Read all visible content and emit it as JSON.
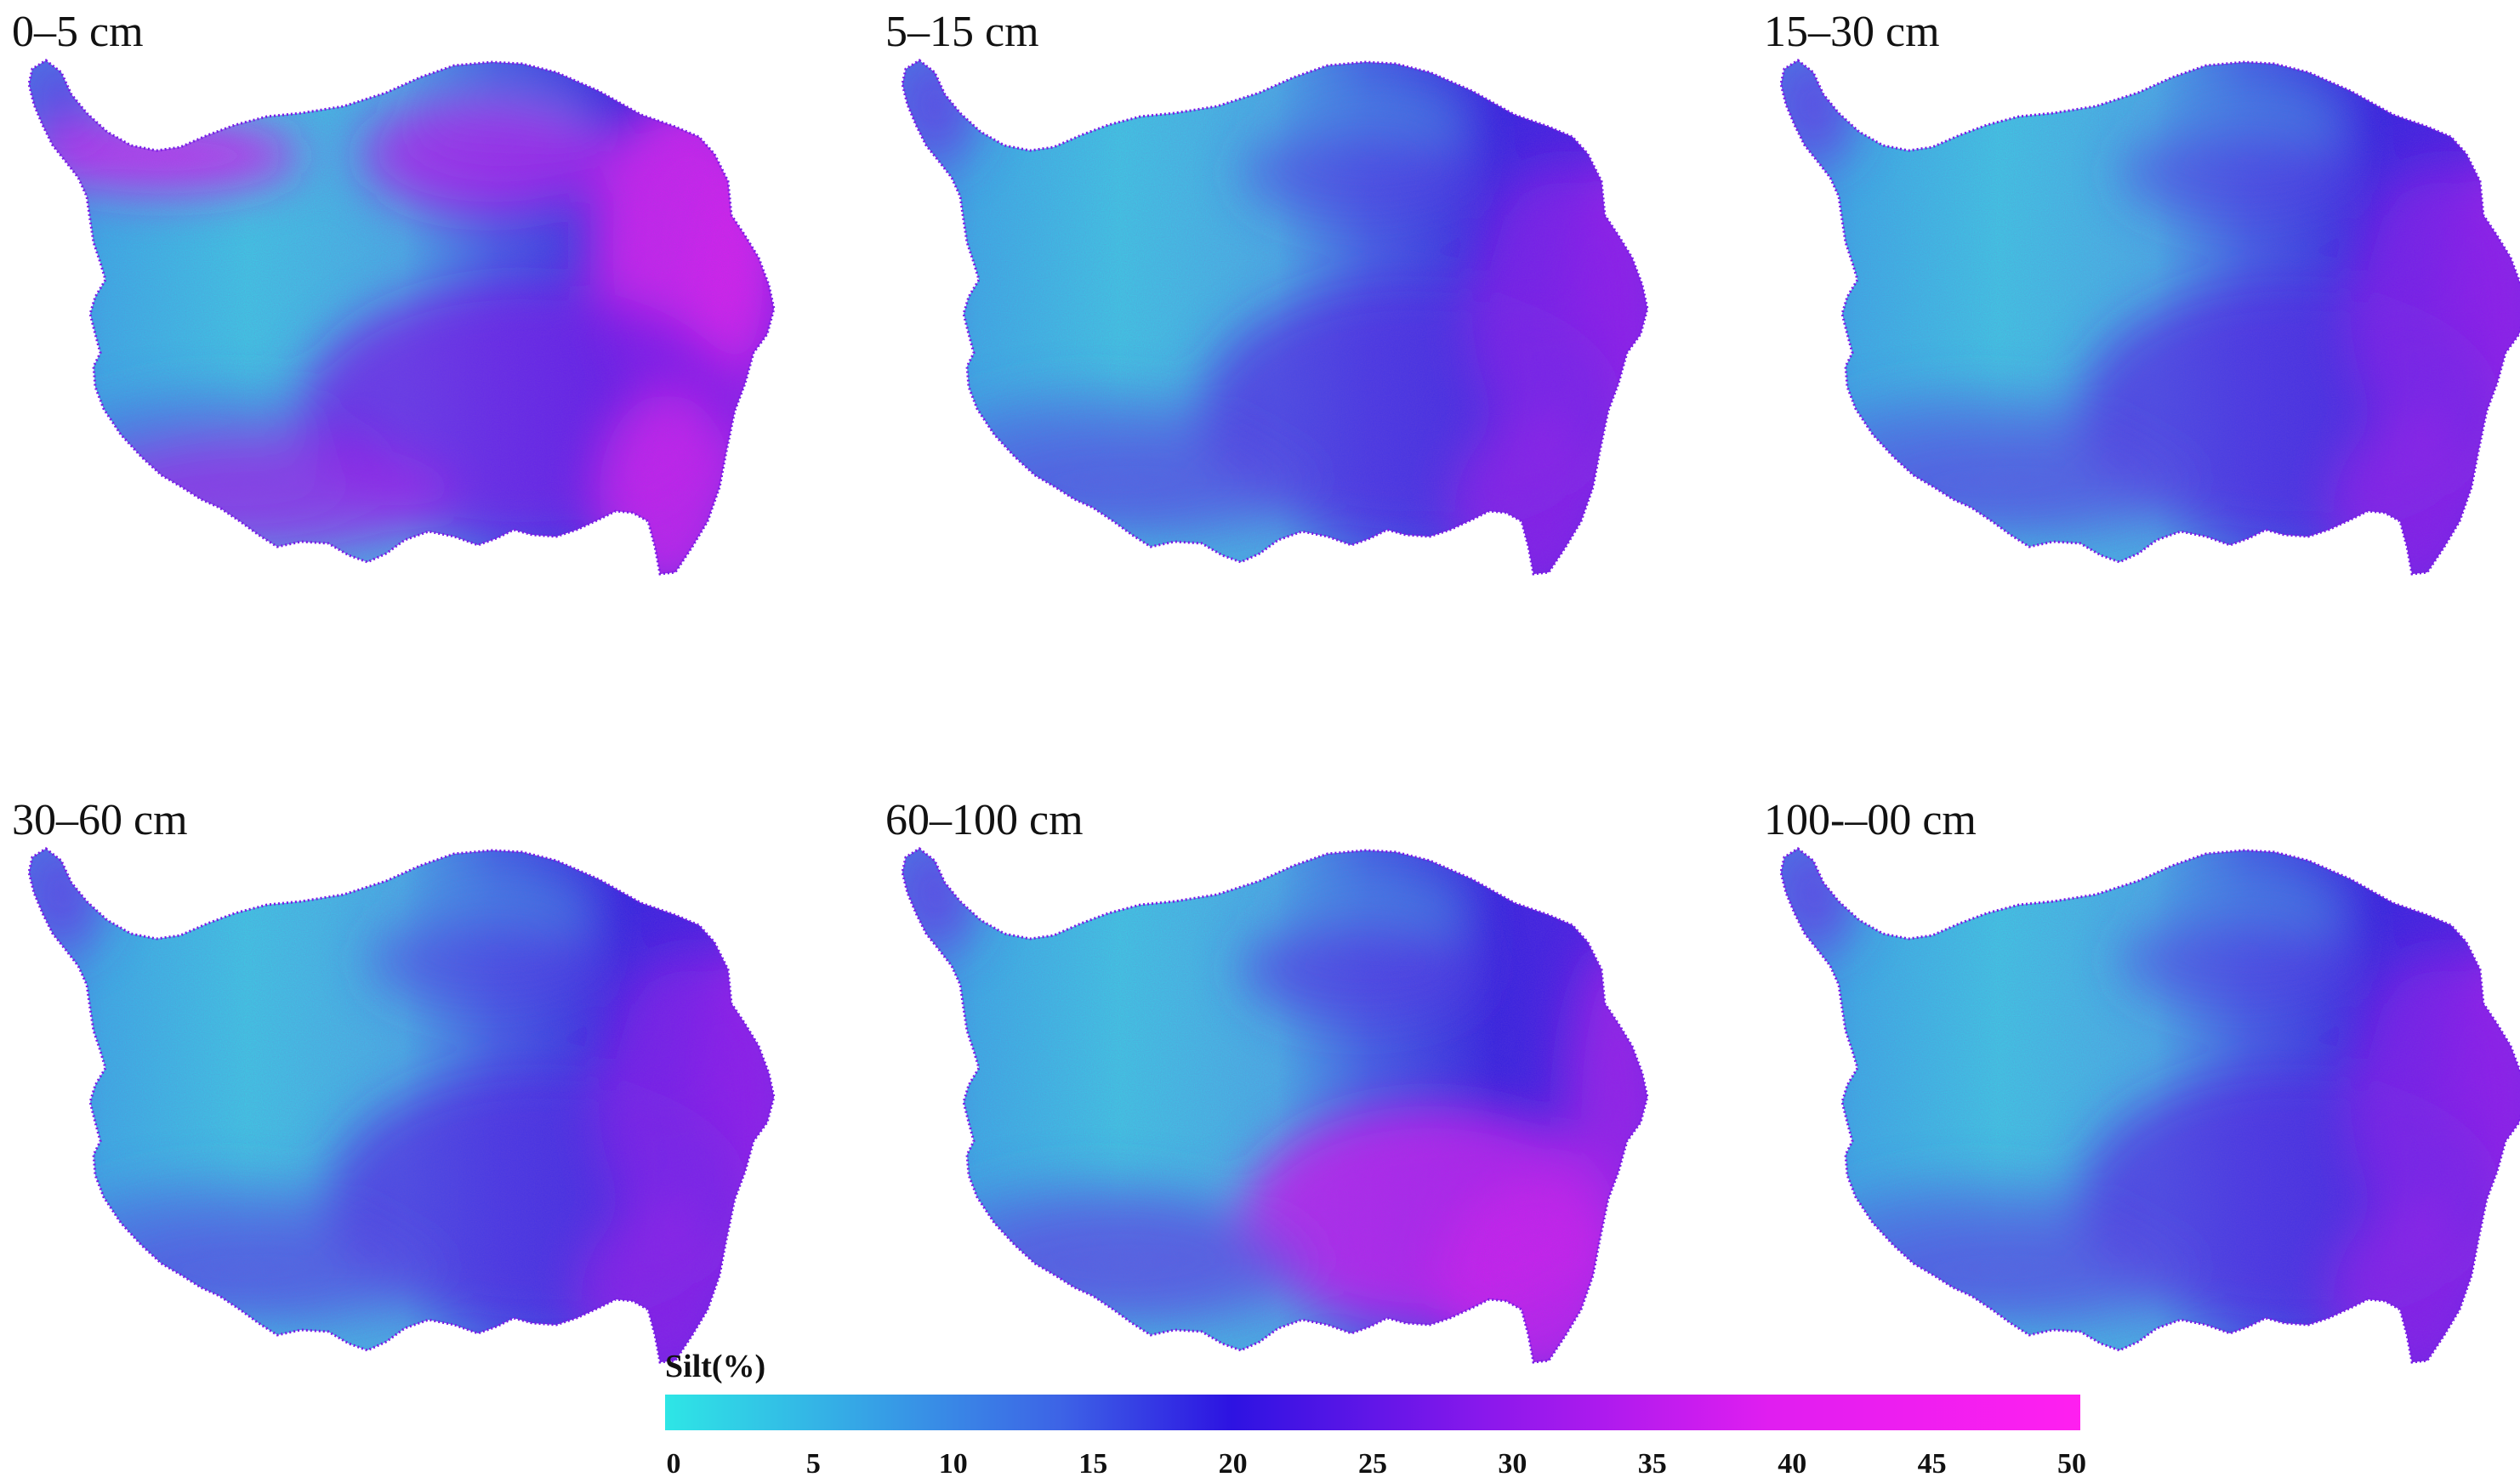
{
  "panels": [
    {
      "title": "0–5 cm",
      "dominant": "magenta-north-east-rim"
    },
    {
      "title": "5–15 cm",
      "dominant": "blue-east"
    },
    {
      "title": "15–30 cm",
      "dominant": "blue-east"
    },
    {
      "title": "30–60 cm",
      "dominant": "blue-east"
    },
    {
      "title": "60–100 cm",
      "dominant": "magenta-south-east"
    },
    {
      "title": "100-–00 cm",
      "dominant": "blue-east"
    }
  ],
  "legend": {
    "title": "Silt(%)",
    "ticks": [
      "0",
      "5",
      "10",
      "15",
      "20",
      "25",
      "30",
      "35",
      "40",
      "45",
      "50"
    ],
    "range": [
      0,
      50
    ],
    "colors": [
      "#2ee6e6",
      "#3d63e6",
      "#2d13e2",
      "#8a18ec",
      "#e01ef0",
      "#ff1ff0"
    ]
  }
}
